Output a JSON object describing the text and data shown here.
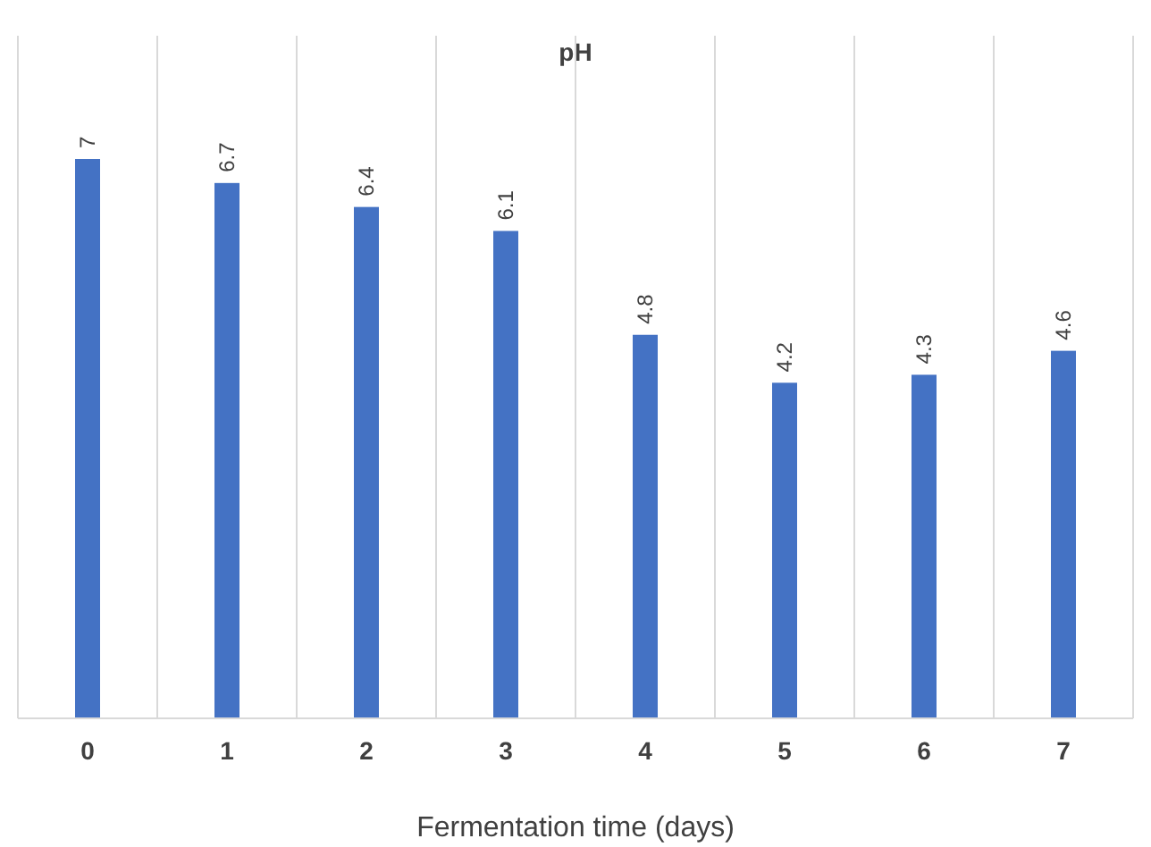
{
  "chart_data": {
    "type": "bar",
    "title": "pH",
    "xlabel": "Fermentation time (days)",
    "categories": [
      "0",
      "1",
      "2",
      "3",
      "4",
      "5",
      "6",
      "7"
    ],
    "values": [
      7,
      6.7,
      6.4,
      6.1,
      4.8,
      4.2,
      4.3,
      4.6
    ],
    "color": "#4472c4",
    "data_labels": true,
    "grid": "x"
  }
}
